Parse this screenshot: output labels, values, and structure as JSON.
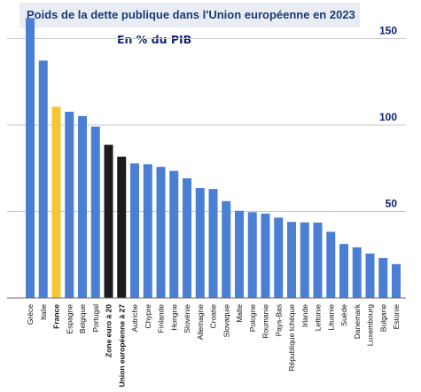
{
  "chart_data": {
    "type": "bar",
    "title": "Poids de la dette publique dans l'Union européenne en 2023",
    "subtitle": "En % du PIB",
    "xlabel": "",
    "ylabel": "",
    "ylim": [
      0,
      160
    ],
    "yticks": [
      "50",
      "100",
      "150"
    ],
    "ytick_values": [
      50,
      100,
      150
    ],
    "grid": true,
    "categories": [
      "Grèce",
      "Italie",
      "France",
      "Espagne",
      "Belgique",
      "Portugal",
      "Zone euro à 20",
      "Union européenne à 27",
      "Autriche",
      "Chypre",
      "Finlande",
      "Hongrie",
      "Slovénie",
      "Allemagne",
      "Croatie",
      "Slovaquie",
      "Malte",
      "Pologne",
      "Roumanie",
      "Pays-Bas",
      "République tchèque",
      "Irlande",
      "Lettonie",
      "Lituanie",
      "Suède",
      "Danemark",
      "Luxembourg",
      "Bulgarie",
      "Estonie"
    ],
    "values": [
      161.9,
      137.3,
      110.6,
      107.7,
      105.2,
      99.1,
      88.6,
      81.7,
      77.8,
      77.3,
      75.8,
      73.5,
      69.2,
      63.6,
      63.0,
      56.0,
      50.4,
      49.6,
      48.8,
      46.5,
      44.0,
      43.7,
      43.6,
      38.3,
      31.2,
      29.3,
      25.7,
      23.1,
      19.6
    ],
    "bold_categories": [
      "France",
      "Zone euro à 20",
      "Union européenne à 27"
    ],
    "colors": {
      "default": "#4a7fd4",
      "highlight": "#f5c634",
      "aggregate": "#1c1c1c",
      "grid": "#c9c9c9",
      "axis": "#6b6b6b"
    },
    "bar_colors": [
      "default",
      "default",
      "highlight",
      "default",
      "default",
      "default",
      "aggregate",
      "aggregate",
      "default",
      "default",
      "default",
      "default",
      "default",
      "default",
      "default",
      "default",
      "default",
      "default",
      "default",
      "default",
      "default",
      "default",
      "default",
      "default",
      "default",
      "default",
      "default",
      "default",
      "default"
    ]
  }
}
